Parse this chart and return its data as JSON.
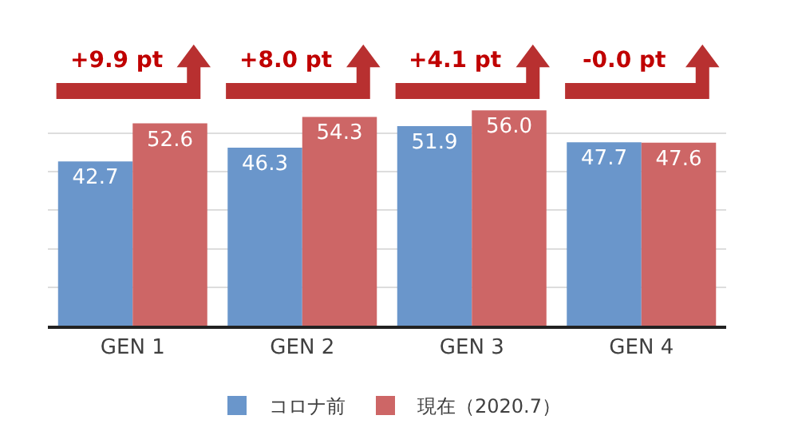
{
  "chart_data": {
    "type": "bar",
    "categories": [
      "GEN 1",
      "GEN 2",
      "GEN 3",
      "GEN 4"
    ],
    "series": [
      {
        "name": "コロナ前",
        "color": "#6a96cb",
        "values": [
          42.7,
          46.3,
          51.9,
          47.7
        ],
        "value_labels": [
          "42.7",
          "46.3",
          "51.9",
          "47.7"
        ]
      },
      {
        "name": "現在（2020.7）",
        "color": "#cd6666",
        "values": [
          52.6,
          54.3,
          56.0,
          47.6
        ],
        "value_labels": [
          "52.6",
          "54.3",
          "56.0",
          "47.6"
        ]
      }
    ],
    "tick_labels": "x",
    "grid": "y",
    "legend": "bottom",
    "annotations": [
      "+9.9 pt",
      "+8.0 pt",
      "+4.1 pt",
      "-0.0 pt"
    ]
  }
}
